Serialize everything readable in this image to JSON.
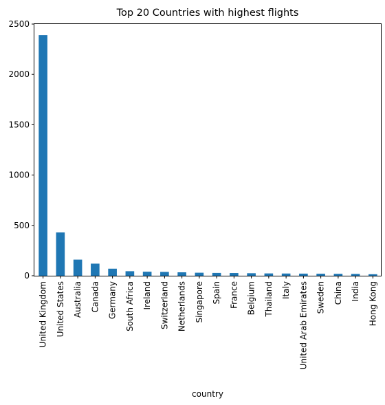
{
  "chart_data": {
    "type": "bar",
    "title": "Top 20 Countries with highest flights",
    "xlabel": "country",
    "ylabel": "",
    "categories": [
      "United Kingdom",
      "United States",
      "Australia",
      "Canada",
      "Germany",
      "South Africa",
      "Ireland",
      "Switzerland",
      "Netherlands",
      "Singapore",
      "Spain",
      "France",
      "Belgium",
      "Thailand",
      "Italy",
      "United Arab Emirates",
      "Sweden",
      "China",
      "India",
      "Hong Kong"
    ],
    "values": [
      2390,
      430,
      160,
      120,
      70,
      45,
      40,
      38,
      34,
      30,
      28,
      27,
      25,
      23,
      22,
      21,
      20,
      19,
      18,
      15
    ],
    "ylim": [
      0,
      2500
    ],
    "yticks": [
      0,
      500,
      1000,
      1500,
      2000,
      2500
    ],
    "grid": false,
    "legend": "none",
    "bar_color": "#1f77b4"
  }
}
